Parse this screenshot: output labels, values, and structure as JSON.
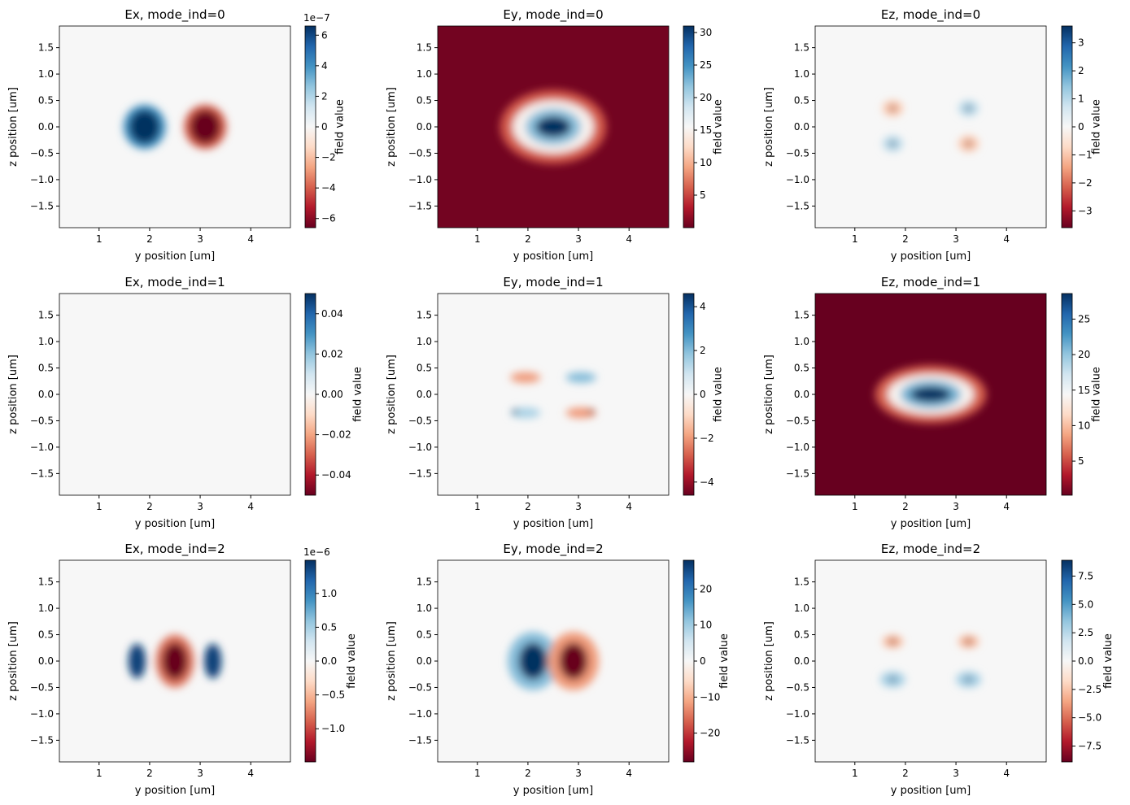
{
  "colormap": [
    "#67001f",
    "#b2182b",
    "#d6604d",
    "#f4a582",
    "#fddbc7",
    "#f7f7f7",
    "#d1e5f0",
    "#92c5de",
    "#4393c3",
    "#2166ac",
    "#053061"
  ],
  "chart_data": [
    {
      "type": "heatmap",
      "title": "Ex, mode_ind=0",
      "xlabel": "y position [um]",
      "ylabel": "z position [um]",
      "colorbar_label": "field value",
      "offset_text": "1e−7",
      "xlim": [
        0.215,
        4.785
      ],
      "ylim": [
        -1.91,
        1.91
      ],
      "xticks": [
        1,
        2,
        3,
        4
      ],
      "yticks": [
        {
          "value": -1.5,
          "label": "−1.5"
        },
        {
          "value": -1,
          "label": "−1.0"
        },
        {
          "value": -0.5,
          "label": "−0.5"
        },
        {
          "value": 0,
          "label": "0.0"
        },
        0.5,
        {
          "value": 1,
          "label": "1.0"
        },
        1.5
      ],
      "clim": [
        -6.6,
        6.6
      ],
      "cticks": [
        {
          "value": -6,
          "label": "−6"
        },
        {
          "value": -4,
          "label": "−4"
        },
        {
          "value": -2,
          "label": "−2"
        },
        0,
        2,
        4,
        6
      ],
      "background": 0,
      "blobs": [
        {
          "x": 1.9,
          "y": 0,
          "value": 4,
          "rx": 0.42,
          "ry": 0.42
        },
        {
          "x": 1.9,
          "y": 0,
          "value": 6.6,
          "rx": 0.3,
          "ry": 0.32
        },
        {
          "x": 3.1,
          "y": 0,
          "value": -4,
          "rx": 0.42,
          "ry": 0.42
        },
        {
          "x": 3.1,
          "y": 0,
          "value": -6.6,
          "rx": 0.3,
          "ry": 0.32
        }
      ]
    },
    {
      "type": "heatmap",
      "title": "Ey, mode_ind=0",
      "xlabel": "y position [um]",
      "ylabel": "z position [um]",
      "colorbar_label": "field value",
      "xlim": [
        0.215,
        4.785
      ],
      "ylim": [
        -1.91,
        1.91
      ],
      "xticks": [
        1,
        2,
        3,
        4
      ],
      "yticks": [
        {
          "value": -1.5,
          "label": "−1.5"
        },
        {
          "value": -1,
          "label": "−1.0"
        },
        {
          "value": -0.5,
          "label": "−0.5"
        },
        {
          "value": 0,
          "label": "0.0"
        },
        0.5,
        {
          "value": 1,
          "label": "1.0"
        },
        1.5
      ],
      "clim": [
        0,
        31
      ],
      "cticks": [
        5,
        10,
        15,
        20,
        25,
        30
      ],
      "background": 0.5,
      "blobs": [
        {
          "x": 2.5,
          "y": 0,
          "value": 6,
          "rx": 1.05,
          "ry": 0.7
        },
        {
          "x": 2.5,
          "y": 0,
          "value": 15,
          "rx": 0.8,
          "ry": 0.5
        },
        {
          "x": 2.5,
          "y": 0,
          "value": 22,
          "rx": 0.55,
          "ry": 0.35
        },
        {
          "x": 2.5,
          "y": 0,
          "value": 31,
          "rx": 0.35,
          "ry": 0.2
        }
      ]
    },
    {
      "type": "heatmap",
      "title": "Ez, mode_ind=0",
      "xlabel": "y position [um]",
      "ylabel": "z position [um]",
      "colorbar_label": "field value",
      "xlim": [
        0.215,
        4.785
      ],
      "ylim": [
        -1.91,
        1.91
      ],
      "xticks": [
        1,
        2,
        3,
        4
      ],
      "yticks": [
        {
          "value": -1.5,
          "label": "−1.5"
        },
        {
          "value": -1,
          "label": "−1.0"
        },
        {
          "value": -0.5,
          "label": "−0.5"
        },
        {
          "value": 0,
          "label": "0.0"
        },
        0.5,
        {
          "value": 1,
          "label": "1.0"
        },
        1.5
      ],
      "clim": [
        -3.6,
        3.6
      ],
      "cticks": [
        {
          "value": -3,
          "label": "−3"
        },
        {
          "value": -2,
          "label": "−2"
        },
        {
          "value": -1,
          "label": "−1"
        },
        0,
        1,
        2,
        3
      ],
      "background": 0,
      "blobs": [
        {
          "x": 1.75,
          "y": 0.35,
          "value": -1,
          "rx": 0.2,
          "ry": 0.15
        },
        {
          "x": 1.75,
          "y": 0.35,
          "value": -3.6,
          "rx": 0.05,
          "ry": 0.05
        },
        {
          "x": 3.25,
          "y": 0.35,
          "value": 1,
          "rx": 0.2,
          "ry": 0.15
        },
        {
          "x": 3.25,
          "y": 0.35,
          "value": 3.6,
          "rx": 0.05,
          "ry": 0.05
        },
        {
          "x": 1.75,
          "y": -0.32,
          "value": 1,
          "rx": 0.2,
          "ry": 0.15
        },
        {
          "x": 1.75,
          "y": -0.32,
          "value": 3.6,
          "rx": 0.05,
          "ry": 0.05
        },
        {
          "x": 3.25,
          "y": -0.32,
          "value": -1,
          "rx": 0.2,
          "ry": 0.15
        },
        {
          "x": 3.25,
          "y": -0.32,
          "value": -3.6,
          "rx": 0.05,
          "ry": 0.05
        }
      ]
    },
    {
      "type": "heatmap",
      "title": "Ex, mode_ind=1",
      "xlabel": "y position [um]",
      "ylabel": "z position [um]",
      "colorbar_label": "field value",
      "xlim": [
        0.215,
        4.785
      ],
      "ylim": [
        -1.91,
        1.91
      ],
      "xticks": [
        1,
        2,
        3,
        4
      ],
      "yticks": [
        {
          "value": -1.5,
          "label": "−1.5"
        },
        {
          "value": -1,
          "label": "−1.0"
        },
        {
          "value": -0.5,
          "label": "−0.5"
        },
        {
          "value": 0,
          "label": "0.0"
        },
        0.5,
        {
          "value": 1,
          "label": "1.0"
        },
        1.5
      ],
      "clim": [
        -0.05,
        0.05
      ],
      "cticks": [
        {
          "value": -0.04,
          "label": "−0.04"
        },
        {
          "value": -0.02,
          "label": "−0.02"
        },
        {
          "value": 0,
          "label": "0.00"
        },
        {
          "value": 0.02,
          "label": "0.02"
        },
        {
          "value": 0.04,
          "label": "0.04"
        }
      ],
      "background": 0,
      "blobs": []
    },
    {
      "type": "heatmap",
      "title": "Ey, mode_ind=1",
      "xlabel": "y position [um]",
      "ylabel": "z position [um]",
      "colorbar_label": "field value",
      "xlim": [
        0.215,
        4.785
      ],
      "ylim": [
        -1.91,
        1.91
      ],
      "xticks": [
        1,
        2,
        3,
        4
      ],
      "yticks": [
        {
          "value": -1.5,
          "label": "−1.5"
        },
        {
          "value": -1,
          "label": "−1.0"
        },
        {
          "value": -0.5,
          "label": "−0.5"
        },
        {
          "value": 0,
          "label": "0.0"
        },
        0.5,
        {
          "value": 1,
          "label": "1.0"
        },
        1.5
      ],
      "clim": [
        -4.6,
        4.6
      ],
      "cticks": [
        {
          "value": -4,
          "label": "−4"
        },
        {
          "value": -2,
          "label": "−2"
        },
        0,
        2,
        4
      ],
      "background": 0,
      "blobs": [
        {
          "x": 1.95,
          "y": 0.32,
          "value": -2,
          "rx": 0.3,
          "ry": 0.1
        },
        {
          "x": 3.05,
          "y": 0.32,
          "value": 2,
          "rx": 0.3,
          "ry": 0.1
        },
        {
          "x": 1.95,
          "y": -0.35,
          "value": 1.5,
          "rx": 0.3,
          "ry": 0.1
        },
        {
          "x": 3.05,
          "y": -0.35,
          "value": -2,
          "rx": 0.3,
          "ry": 0.1
        },
        {
          "x": 1.75,
          "y": -0.33,
          "value": 4.6,
          "rx": 0.05,
          "ry": 0.05
        },
        {
          "x": 3.25,
          "y": -0.33,
          "value": -4.6,
          "rx": 0.05,
          "ry": 0.05
        }
      ]
    },
    {
      "type": "heatmap",
      "title": "Ez, mode_ind=1",
      "xlabel": "y position [um]",
      "ylabel": "z position [um]",
      "colorbar_label": "field value",
      "xlim": [
        0.215,
        4.785
      ],
      "ylim": [
        -1.91,
        1.91
      ],
      "xticks": [
        1,
        2,
        3,
        4
      ],
      "yticks": [
        {
          "value": -1.5,
          "label": "−1.5"
        },
        {
          "value": -1,
          "label": "−1.0"
        },
        {
          "value": -0.5,
          "label": "−0.5"
        },
        {
          "value": 0,
          "label": "0.0"
        },
        0.5,
        {
          "value": 1,
          "label": "1.0"
        },
        1.5
      ],
      "clim": [
        0.2,
        28.6
      ],
      "cticks": [
        5,
        10,
        15,
        20,
        25
      ],
      "background": 0.2,
      "blobs": [
        {
          "x": 2.5,
          "y": 0,
          "value": 6,
          "rx": 1.1,
          "ry": 0.55
        },
        {
          "x": 2.5,
          "y": 0,
          "value": 14,
          "rx": 0.85,
          "ry": 0.38
        },
        {
          "x": 2.5,
          "y": 0,
          "value": 21,
          "rx": 0.6,
          "ry": 0.27
        },
        {
          "x": 2.5,
          "y": 0,
          "value": 28.6,
          "rx": 0.4,
          "ry": 0.15
        }
      ]
    },
    {
      "type": "heatmap",
      "title": "Ex, mode_ind=2",
      "xlabel": "y position [um]",
      "ylabel": "z position [um]",
      "colorbar_label": "field value",
      "offset_text": "1e−6",
      "xlim": [
        0.215,
        4.785
      ],
      "ylim": [
        -1.91,
        1.91
      ],
      "xticks": [
        1,
        2,
        3,
        4
      ],
      "yticks": [
        {
          "value": -1.5,
          "label": "−1.5"
        },
        {
          "value": -1,
          "label": "−1.0"
        },
        {
          "value": -0.5,
          "label": "−0.5"
        },
        {
          "value": 0,
          "label": "0.0"
        },
        0.5,
        {
          "value": 1,
          "label": "1.0"
        },
        1.5
      ],
      "clim": [
        -1.49,
        1.49
      ],
      "cticks": [
        {
          "value": -1,
          "label": "−1.0"
        },
        {
          "value": -0.5,
          "label": "−0.5"
        },
        {
          "value": 0,
          "label": "0.0"
        },
        0.5,
        {
          "value": 1,
          "label": "1.0"
        }
      ],
      "background": 0,
      "blobs": [
        {
          "x": 1.75,
          "y": 0,
          "value": 1.4,
          "rx": 0.17,
          "ry": 0.33
        },
        {
          "x": 2.5,
          "y": 0,
          "value": -0.8,
          "rx": 0.38,
          "ry": 0.5
        },
        {
          "x": 2.5,
          "y": 0,
          "value": -1.49,
          "rx": 0.25,
          "ry": 0.35
        },
        {
          "x": 3.25,
          "y": 0,
          "value": 1.4,
          "rx": 0.17,
          "ry": 0.33
        }
      ]
    },
    {
      "type": "heatmap",
      "title": "Ey, mode_ind=2",
      "xlabel": "y position [um]",
      "ylabel": "z position [um]",
      "colorbar_label": "field value",
      "xlim": [
        0.215,
        4.785
      ],
      "ylim": [
        -1.91,
        1.91
      ],
      "xticks": [
        1,
        2,
        3,
        4
      ],
      "yticks": [
        {
          "value": -1.5,
          "label": "−1.5"
        },
        {
          "value": -1,
          "label": "−1.0"
        },
        {
          "value": -0.5,
          "label": "−0.5"
        },
        {
          "value": 0,
          "label": "0.0"
        },
        0.5,
        {
          "value": 1,
          "label": "1.0"
        },
        1.5
      ],
      "clim": [
        -28,
        28
      ],
      "cticks": [
        {
          "value": -20,
          "label": "−20"
        },
        {
          "value": -10,
          "label": "−10"
        },
        0,
        10,
        20
      ],
      "background": 0,
      "blobs": [
        {
          "x": 2.1,
          "y": 0,
          "value": 12,
          "rx": 0.5,
          "ry": 0.55
        },
        {
          "x": 2.1,
          "y": 0,
          "value": 28,
          "rx": 0.28,
          "ry": 0.35
        },
        {
          "x": 2.9,
          "y": 0,
          "value": -12,
          "rx": 0.5,
          "ry": 0.55
        },
        {
          "x": 2.9,
          "y": 0,
          "value": -28,
          "rx": 0.28,
          "ry": 0.35
        }
      ]
    },
    {
      "type": "heatmap",
      "title": "Ez, mode_ind=2",
      "xlabel": "y position [um]",
      "ylabel": "z position [um]",
      "colorbar_label": "field value",
      "xlim": [
        0.215,
        4.785
      ],
      "ylim": [
        -1.91,
        1.91
      ],
      "xticks": [
        1,
        2,
        3,
        4
      ],
      "yticks": [
        {
          "value": -1.5,
          "label": "−1.5"
        },
        {
          "value": -1,
          "label": "−1.0"
        },
        {
          "value": -0.5,
          "label": "−0.5"
        },
        {
          "value": 0,
          "label": "0.0"
        },
        0.5,
        {
          "value": 1,
          "label": "1.0"
        },
        1.5
      ],
      "clim": [
        -8.9,
        8.9
      ],
      "cticks": [
        {
          "value": -7.5,
          "label": "−7.5"
        },
        {
          "value": -5,
          "label": "−5.0"
        },
        {
          "value": -2.5,
          "label": "−2.5"
        },
        {
          "value": 0,
          "label": "0.0"
        },
        2.5,
        {
          "value": 5,
          "label": "5.0"
        },
        7.5
      ],
      "background": 0,
      "blobs": [
        {
          "x": 1.75,
          "y": 0.37,
          "value": -3,
          "rx": 0.2,
          "ry": 0.12
        },
        {
          "x": 1.75,
          "y": 0.37,
          "value": -8.9,
          "rx": 0.05,
          "ry": 0.05
        },
        {
          "x": 3.25,
          "y": 0.37,
          "value": -3,
          "rx": 0.2,
          "ry": 0.12
        },
        {
          "x": 3.25,
          "y": 0.37,
          "value": -8.9,
          "rx": 0.05,
          "ry": 0.05
        },
        {
          "x": 1.75,
          "y": -0.35,
          "value": 3,
          "rx": 0.25,
          "ry": 0.15
        },
        {
          "x": 1.75,
          "y": -0.35,
          "value": 8.9,
          "rx": 0.05,
          "ry": 0.05
        },
        {
          "x": 3.25,
          "y": -0.35,
          "value": 3,
          "rx": 0.25,
          "ry": 0.15
        },
        {
          "x": 3.25,
          "y": -0.35,
          "value": 8.9,
          "rx": 0.05,
          "ry": 0.05
        }
      ]
    }
  ]
}
